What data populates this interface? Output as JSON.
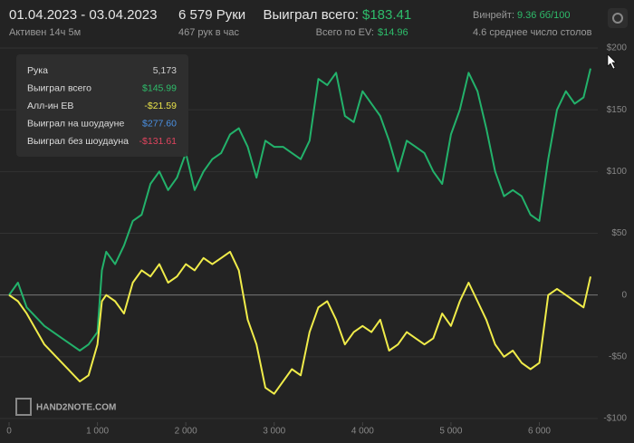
{
  "header": {
    "date_range": "01.04.2023 - 03.04.2023",
    "active": "Активен 14ч 5м",
    "hands": "6 579 Руки",
    "hands_per_hour": "467 рук в час",
    "won_label": "Выиграл всего:",
    "won_value": "$183.41",
    "ev_label": "Всего по EV:",
    "ev_value": "$14.96",
    "winrate_label": "Винрейт:",
    "winrate_value": "9.36 бб/100",
    "tables": "4.6 среднее число столов"
  },
  "tooltip": {
    "rows": [
      {
        "label": "Рука",
        "value": "5,173",
        "color": "#cfcfcf"
      },
      {
        "label": "Выиграл всего",
        "value": "$145.99",
        "color": "#2ebd6b"
      },
      {
        "label": "Алл-ин EB",
        "value": "-$21.59",
        "color": "#e8e24a"
      },
      {
        "label": "Выиграл на шоудауне",
        "value": "$277.60",
        "color": "#4a90e2"
      },
      {
        "label": "Выиграл без шоудауна",
        "value": "-$131.61",
        "color": "#e0445e"
      }
    ]
  },
  "logo": "HAND2NOTE.COM",
  "chart_data": {
    "type": "line",
    "x": [
      0,
      100,
      200,
      400,
      600,
      800,
      900,
      1000,
      1050,
      1100,
      1200,
      1300,
      1400,
      1500,
      1600,
      1700,
      1800,
      1900,
      2000,
      2100,
      2200,
      2300,
      2400,
      2500,
      2600,
      2700,
      2800,
      2900,
      3000,
      3100,
      3200,
      3300,
      3400,
      3500,
      3600,
      3700,
      3800,
      3900,
      4000,
      4100,
      4200,
      4300,
      4400,
      4500,
      4600,
      4700,
      4800,
      4900,
      5000,
      5100,
      5200,
      5300,
      5400,
      5500,
      5600,
      5700,
      5800,
      5900,
      6000,
      6100,
      6200,
      6300,
      6400,
      6500,
      6579
    ],
    "series": [
      {
        "name": "Выиграл всего",
        "color": "#23b26b",
        "values": [
          0,
          10,
          -10,
          -25,
          -35,
          -45,
          -40,
          -30,
          20,
          35,
          25,
          40,
          60,
          65,
          90,
          100,
          85,
          95,
          115,
          85,
          100,
          110,
          115,
          130,
          135,
          120,
          95,
          125,
          120,
          120,
          115,
          110,
          125,
          175,
          170,
          180,
          145,
          140,
          165,
          155,
          145,
          125,
          100,
          125,
          120,
          115,
          100,
          90,
          130,
          150,
          180,
          165,
          135,
          100,
          80,
          85,
          80,
          65,
          60,
          110,
          150,
          165,
          155,
          160,
          183.41
        ]
      },
      {
        "name": "Алл-ин EB",
        "color": "#f0ec4a",
        "values": [
          0,
          -5,
          -15,
          -40,
          -55,
          -70,
          -65,
          -40,
          -5,
          0,
          -5,
          -15,
          10,
          20,
          15,
          25,
          10,
          15,
          25,
          20,
          30,
          25,
          30,
          35,
          20,
          -20,
          -40,
          -75,
          -80,
          -70,
          -60,
          -65,
          -30,
          -10,
          -5,
          -20,
          -40,
          -30,
          -25,
          -30,
          -20,
          -45,
          -40,
          -30,
          -35,
          -40,
          -35,
          -15,
          -25,
          -5,
          10,
          -5,
          -20,
          -40,
          -50,
          -45,
          -55,
          -60,
          -55,
          0,
          5,
          0,
          -5,
          -10,
          14.96
        ]
      }
    ],
    "xlim": [
      0,
      6579
    ],
    "ylim": [
      -100,
      200
    ],
    "xticks": [
      0,
      {
        "value": 1000,
        "label": "1 000"
      },
      {
        "value": 2000,
        "label": "2 000"
      },
      {
        "value": 3000,
        "label": "3 000"
      },
      {
        "value": 4000,
        "label": "4 000"
      },
      {
        "value": 5000,
        "label": "5 000"
      },
      {
        "value": 6000,
        "label": "6 000"
      }
    ],
    "yticks": [
      {
        "value": -100,
        "label": "-$100"
      },
      {
        "value": -50,
        "label": "-$50"
      },
      0,
      {
        "value": 50,
        "label": "$50"
      },
      {
        "value": 100,
        "label": "$100"
      },
      {
        "value": 150,
        "label": "$150"
      },
      {
        "value": 200,
        "label": "$200"
      }
    ],
    "grid": true
  }
}
